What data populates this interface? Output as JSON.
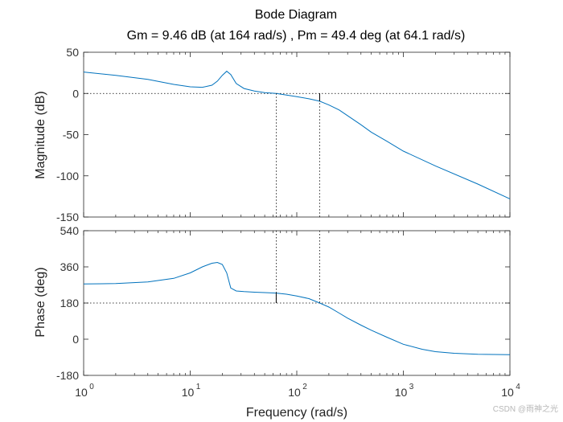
{
  "chart_data": {
    "type": "line",
    "title": "Bode Diagram",
    "subtitle": "Gm = 9.46 dB (at 164 rad/s) ,  Pm = 49.4 deg (at 64.1 rad/s)",
    "xlabel": "Frequency  (rad/s)",
    "x_scale": "log",
    "xlim": [
      1,
      10000
    ],
    "x_ticks": [
      {
        "base": "10",
        "exp": "0"
      },
      {
        "base": "10",
        "exp": "1"
      },
      {
        "base": "10",
        "exp": "2"
      },
      {
        "base": "10",
        "exp": "3"
      },
      {
        "base": "10",
        "exp": "4"
      }
    ],
    "x_tick_values": [
      1,
      10,
      100,
      1000,
      10000
    ],
    "line_color": "#0072BD",
    "gain_margin": {
      "value_db": 9.46,
      "freq": 164
    },
    "phase_margin": {
      "value_deg": 49.4,
      "freq": 64.1
    },
    "magnitude": {
      "ylabel": "Magnitude (dB)",
      "ylim": [
        -150,
        50
      ],
      "y_ticks": [
        "50",
        "0",
        "-50",
        "-100",
        "-150"
      ],
      "y_tick_values": [
        50,
        0,
        -50,
        -100,
        -150
      ],
      "reference": 0,
      "x": [
        1,
        2,
        4,
        7,
        10,
        13,
        16,
        18,
        20,
        22,
        24,
        27,
        32,
        40,
        50,
        64.1,
        80,
        100,
        130,
        164,
        200,
        250,
        300,
        400,
        500,
        700,
        1000,
        2000,
        5000,
        10000
      ],
      "y": [
        26,
        22,
        17,
        11,
        8,
        7.5,
        10,
        15,
        22,
        27,
        23,
        12,
        6,
        3,
        1,
        0,
        -2,
        -4,
        -6.5,
        -9.46,
        -14,
        -20,
        -27,
        -38,
        -47,
        -58,
        -70,
        -88,
        -110,
        -128
      ]
    },
    "phase": {
      "ylabel": "Phase (deg)",
      "ylim": [
        -180,
        540
      ],
      "y_ticks": [
        "540",
        "360",
        "180",
        "0",
        "-180"
      ],
      "y_tick_values": [
        540,
        360,
        180,
        0,
        -180
      ],
      "reference": 180,
      "x": [
        1,
        2,
        4,
        7,
        10,
        13,
        16,
        18,
        20,
        22,
        24,
        27,
        32,
        40,
        50,
        64.1,
        80,
        100,
        130,
        164,
        200,
        250,
        300,
        400,
        500,
        700,
        1000,
        1500,
        2000,
        3000,
        5000,
        10000
      ],
      "y": [
        275,
        277,
        285,
        303,
        330,
        360,
        378,
        382,
        372,
        330,
        255,
        240,
        237,
        234,
        232,
        229.4,
        224,
        215,
        202,
        180,
        160,
        130,
        105,
        70,
        45,
        10,
        -25,
        -50,
        -62,
        -70,
        -75,
        -77
      ]
    },
    "watermark": "CSDN @雨神之光"
  }
}
